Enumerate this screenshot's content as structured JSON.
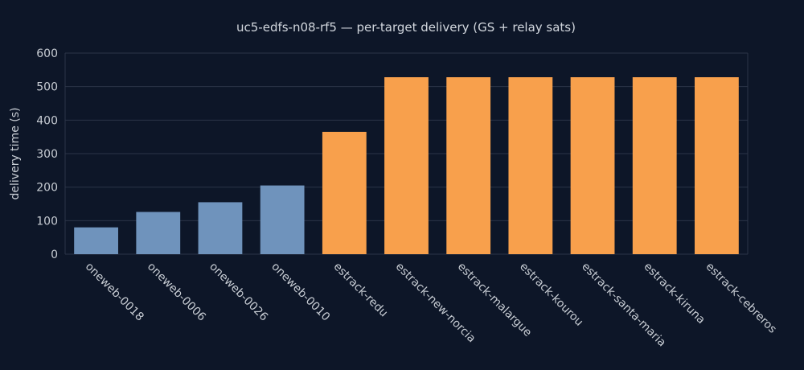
{
  "chart_data": {
    "type": "bar",
    "title": "uc5-edfs-n08-rf5 — per-target delivery (GS + relay sats)",
    "xlabel": "",
    "ylabel": "delivery time (s)",
    "ylim": [
      0,
      600
    ],
    "yticks": [
      0,
      100,
      200,
      300,
      400,
      500,
      600
    ],
    "grid": true,
    "categories": [
      "oneweb-0018",
      "oneweb-0006",
      "oneweb-0026",
      "oneweb-0010",
      "estrack-redu",
      "estrack-new-norcia",
      "estrack-malargue",
      "estrack-kourou",
      "estrack-santa-maria",
      "estrack-kiruna",
      "estrack-cebreros"
    ],
    "values": [
      80,
      126,
      155,
      205,
      365,
      528,
      528,
      528,
      528,
      528,
      528
    ],
    "bar_colors": [
      "#6f93bc",
      "#6f93bc",
      "#6f93bc",
      "#6f93bc",
      "#f8a04c",
      "#f8a04c",
      "#f8a04c",
      "#f8a04c",
      "#f8a04c",
      "#f8a04c",
      "#f8a04c"
    ]
  },
  "colors": {
    "background": "#0d1628",
    "grid": "#2b3447",
    "text": "#c8cdd4",
    "relay_sat_bar": "#6f93bc",
    "ground_station_bar": "#f8a04c"
  }
}
